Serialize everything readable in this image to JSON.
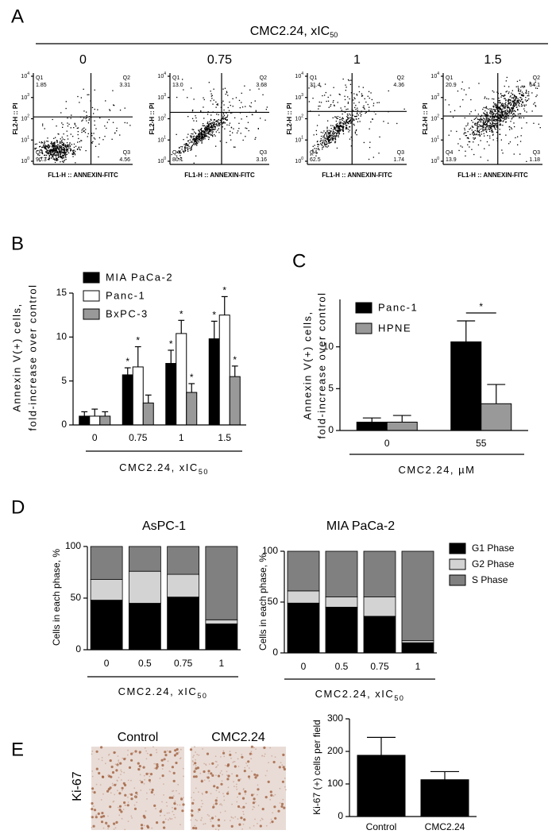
{
  "panel_a": {
    "label": "A",
    "title": "CMC2.24, xIC",
    "title_sub": "50",
    "y_axis_label": "FL2-H :: PI",
    "x_axis_label": "FL1-H :: ANNEXIN-FITC",
    "tick_base": "10",
    "tick_exponents": [
      0,
      1,
      2,
      3,
      4
    ],
    "ylim_log10": [
      0,
      4
    ],
    "plots": [
      {
        "title": "0",
        "quadrants": [
          {
            "name": "Q1",
            "value": "1.85"
          },
          {
            "name": "Q2",
            "value": "3.31"
          },
          {
            "name": "Q3",
            "value": "4.56"
          },
          {
            "name": "Q4",
            "value": "90.3"
          }
        ]
      },
      {
        "title": "0.75",
        "quadrants": [
          {
            "name": "Q1",
            "value": "13.0"
          },
          {
            "name": "Q2",
            "value": "3.68"
          },
          {
            "name": "Q3",
            "value": "3.16"
          },
          {
            "name": "Q4",
            "value": "80.1"
          }
        ]
      },
      {
        "title": "1",
        "quadrants": [
          {
            "name": "Q1",
            "value": "31.4"
          },
          {
            "name": "Q2",
            "value": "4.36"
          },
          {
            "name": "Q3",
            "value": "1.74"
          },
          {
            "name": "Q4",
            "value": "62.5"
          }
        ]
      },
      {
        "title": "1.5",
        "quadrants": [
          {
            "name": "Q1",
            "value": "20.9"
          },
          {
            "name": "Q2",
            "value": "64.1"
          },
          {
            "name": "Q3",
            "value": "1.18"
          },
          {
            "name": "Q4",
            "value": "13.9"
          }
        ]
      }
    ]
  },
  "chart_data": [
    {
      "type": "bar",
      "label": "B",
      "y_label": [
        "Annexin  V(+) cells,",
        "fold-increase over control"
      ],
      "x_label": "CMC2.24, xIC",
      "x_label_sub": "50",
      "categories": [
        "0",
        "0.75",
        "1",
        "1.5"
      ],
      "ylim": [
        0,
        15
      ],
      "yticks": [
        0,
        5,
        10,
        15
      ],
      "legend": "upper left",
      "series": [
        {
          "name": "MIA PaCa-2",
          "color": "#000000",
          "values": [
            1.0,
            5.7,
            7.0,
            9.8
          ],
          "errors": [
            0.5,
            0.8,
            1.5,
            2.0
          ],
          "significance": [
            null,
            "*",
            "*",
            "*"
          ]
        },
        {
          "name": "Panc-1",
          "color": "#ffffff",
          "values": [
            1.0,
            6.6,
            10.4,
            12.5
          ],
          "errors": [
            0.8,
            2.3,
            1.5,
            2.1
          ],
          "significance": [
            null,
            "*",
            "*",
            "*"
          ]
        },
        {
          "name": "BxPC-3",
          "color": "#999999",
          "values": [
            1.0,
            2.5,
            3.7,
            5.5
          ],
          "errors": [
            0.5,
            0.9,
            1.0,
            1.2
          ],
          "significance": [
            null,
            null,
            "*",
            "*"
          ]
        }
      ]
    },
    {
      "type": "bar",
      "label": "C",
      "y_label": [
        "Annexin  V(+) cells,",
        "fold-increase over control"
      ],
      "x_label": "CMC2.24, µM",
      "categories": [
        "0",
        "55"
      ],
      "ylim": [
        0,
        15
      ],
      "yticks": [
        0,
        5,
        10
      ],
      "legend": "upper left",
      "significance_bracket": "*",
      "series": [
        {
          "name": "Panc-1",
          "color": "#000000",
          "values": [
            1.0,
            10.6
          ],
          "errors": [
            0.5,
            2.5
          ]
        },
        {
          "name": "HPNE",
          "color": "#999999",
          "values": [
            1.0,
            3.2
          ],
          "errors": [
            0.8,
            2.3
          ]
        }
      ]
    },
    {
      "type": "stacked_bar",
      "label": "D",
      "title": "AsPC-1",
      "y_label": [
        "Cells in each phase, %"
      ],
      "x_label": "CMC2.24, xIC",
      "x_label_sub": "50",
      "categories": [
        "0",
        "0.5",
        "0.75",
        "1"
      ],
      "ylim": [
        0,
        100
      ],
      "yticks": [
        0,
        50,
        100
      ],
      "series": [
        {
          "color": "#000000",
          "values": [
            48,
            45,
            51,
            25
          ]
        },
        {
          "color": "#d3d3d3",
          "values": [
            20,
            31,
            22,
            4
          ]
        },
        {
          "color": "#808080",
          "values": [
            32,
            24,
            27,
            71
          ]
        }
      ]
    },
    {
      "type": "stacked_bar",
      "title": "MIA PaCa-2",
      "y_label": [
        "Cells in each phase, %"
      ],
      "x_label": "CMC2.24, xIC",
      "x_label_sub": "50",
      "categories": [
        "0",
        "0.5",
        "0.75",
        "1"
      ],
      "ylim": [
        0,
        100
      ],
      "yticks": [
        0,
        50,
        100
      ],
      "legend": "right",
      "series": [
        {
          "name": "G1 Phase",
          "color": "#000000",
          "values": [
            49,
            45,
            36,
            10
          ]
        },
        {
          "name": "G2 Phase",
          "color": "#d3d3d3",
          "values": [
            12,
            10,
            19,
            2
          ]
        },
        {
          "name": "S Phase",
          "color": "#808080",
          "values": [
            39,
            45,
            45,
            88
          ]
        }
      ]
    },
    {
      "type": "bar",
      "y_label": [
        "Ki-67 (+) cells per field"
      ],
      "categories": [
        "Control",
        "CMC2.24"
      ],
      "ylim": [
        0,
        300
      ],
      "yticks": [
        0,
        100,
        200,
        300
      ],
      "series": [
        {
          "color": "#000000",
          "values": [
            188,
            113
          ],
          "errors": [
            55,
            25
          ]
        }
      ]
    }
  ],
  "panel_e_images": {
    "label": "E",
    "row_label": "Ki-67",
    "images": [
      "Control",
      "CMC2.24"
    ]
  }
}
